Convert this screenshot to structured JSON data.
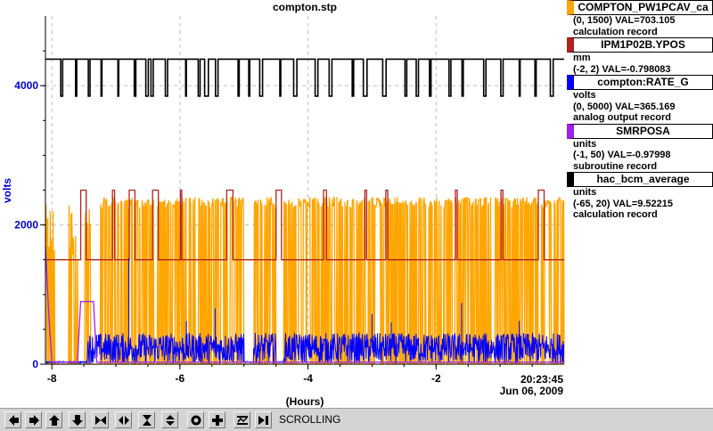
{
  "chart_data": {
    "type": "line",
    "title": "compton.stp",
    "xlabel": "(Hours)",
    "ylabel": "volts",
    "xlim": [
      -8.1,
      0
    ],
    "ylim": [
      0,
      5000
    ],
    "x_ticks": [
      -8,
      -6,
      -4,
      -2
    ],
    "y_ticks": [
      0,
      2000,
      4000
    ],
    "timestamp_time": "20:23:45",
    "timestamp_date": "Jun 06, 2009",
    "grid": true,
    "legend_position": "right",
    "series": [
      {
        "name": "COMPTON_PW1PCAV_ca",
        "range": "(0, 1500) VAL=703.105",
        "record": "calculation record",
        "color": "#ffa500",
        "gaps": [
          [
            -7.95,
            -7.75
          ],
          [
            -7.58,
            -7.5
          ],
          [
            -7.4,
            -7.25
          ],
          [
            -5.0,
            -4.85
          ],
          [
            -4.5,
            -4.38
          ]
        ],
        "low": 0,
        "high": 2400,
        "mid_band": [
          [
            -8.1,
            -7.95,
            1500
          ],
          [
            -7.75,
            -7.58,
            1500
          ],
          [
            -7.5,
            -7.4,
            1500
          ]
        ]
      },
      {
        "name": "IPM1P02B.YPOS",
        "units": "mm",
        "range": "(-2, 2) VAL=-0.798083",
        "color": "#b22222",
        "base": 1500,
        "high": 2500
      },
      {
        "name": "compton:RATE_G",
        "units": "volts",
        "range": "(0, 5000) VAL=365.169",
        "record": "analog output record",
        "color": "#0000ff",
        "mean": 230,
        "spread": 220,
        "spikes": [
          [
            -6.8,
            1520
          ],
          [
            -5.45,
            800
          ],
          [
            -3.0,
            720
          ],
          [
            -1.6,
            880
          ],
          [
            -2.7,
            600
          ],
          [
            -0.7,
            620
          ],
          [
            -5.9,
            620
          ]
        ]
      },
      {
        "name": "SMRPOSA",
        "units": "units",
        "range": "(-1, 50) VAL=-0.97998",
        "record": "subroutine record",
        "color": "#a020f0",
        "points": [
          [
            -8.1,
            1700
          ],
          [
            -8.05,
            750
          ],
          [
            -8.0,
            30
          ],
          [
            -7.6,
            30
          ],
          [
            -7.55,
            900
          ],
          [
            -7.35,
            900
          ],
          [
            -7.3,
            30
          ],
          [
            0,
            30
          ]
        ]
      },
      {
        "name": "hac_bcm_average",
        "units": "units",
        "range": "(-65, 20) VAL=9.52215",
        "record": "calculation record",
        "color": "#000000",
        "high": 4380,
        "low": 3850
      }
    ]
  },
  "toolbar": {
    "buttons": [
      {
        "name": "pan-left-button",
        "icon": "arrow-left-icon"
      },
      {
        "name": "pan-right-button",
        "icon": "arrow-right-icon"
      },
      {
        "name": "pan-up-button",
        "icon": "arrow-up-icon"
      },
      {
        "name": "pan-down-button",
        "icon": "arrow-down-icon"
      },
      {
        "name": "zoom-in-x-button",
        "icon": "zoom-in-x-icon"
      },
      {
        "name": "zoom-out-x-button",
        "icon": "zoom-out-x-icon"
      },
      {
        "name": "zoom-in-y-button",
        "icon": "zoom-in-y-icon"
      },
      {
        "name": "zoom-out-y-button",
        "icon": "zoom-out-y-icon"
      },
      {
        "name": "zoom-reset-button",
        "icon": "target-icon"
      },
      {
        "name": "zoom-add-button",
        "icon": "plus-icon"
      },
      {
        "name": "fit-button",
        "icon": "fit-icon"
      },
      {
        "name": "scroll-to-end-button",
        "icon": "jump-end-icon"
      }
    ],
    "status": "SCROLLING"
  }
}
